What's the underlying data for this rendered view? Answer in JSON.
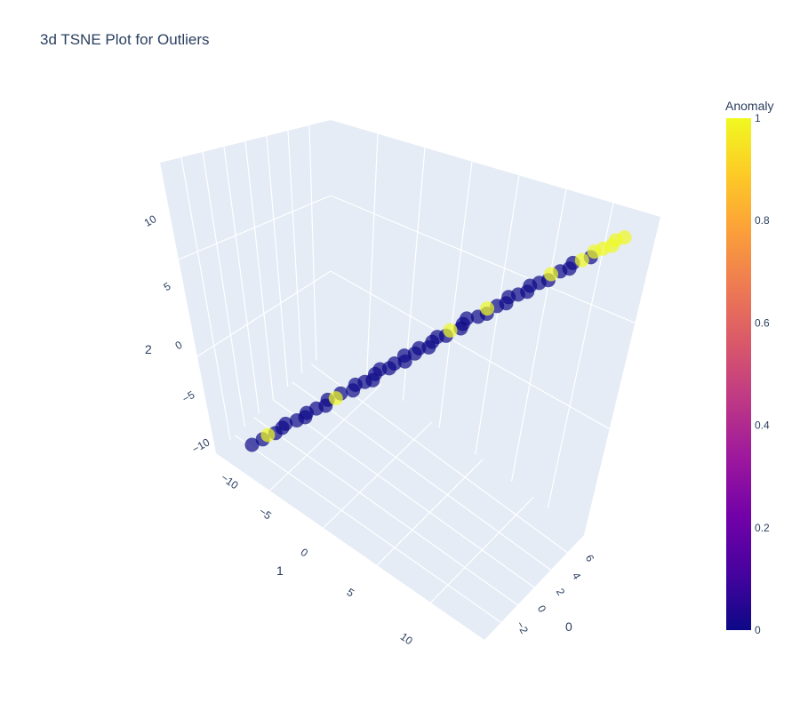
{
  "chart_data": {
    "type": "scatter",
    "title": "3d TSNE Plot for Outliers",
    "axes": {
      "x": {
        "title": "1",
        "ticks": [
          "−10",
          "−5",
          "0",
          "5",
          "10"
        ],
        "range": [
          -12,
          12
        ]
      },
      "y": {
        "title": "0",
        "ticks": [
          "6",
          "4",
          "2",
          "0",
          "−2"
        ],
        "range": [
          -3,
          7
        ]
      },
      "z": {
        "title": "2",
        "ticks": [
          "−10",
          "−5",
          "0",
          "5",
          "10"
        ],
        "range": [
          -12,
          13
        ]
      }
    },
    "colorbar": {
      "title": "Anomaly",
      "ticks": [
        "0",
        "0.2",
        "0.4",
        "0.6",
        "0.8",
        "1"
      ],
      "range": [
        0,
        1
      ],
      "colorscale": [
        "#0d0887",
        "#46039f",
        "#7201a8",
        "#9c179e",
        "#bd3786",
        "#d8576b",
        "#ed7953",
        "#fb9f3a",
        "#fdca26",
        "#f0f921"
      ]
    },
    "marker_opacity": 0.7,
    "series": [
      {
        "values_description_free": true,
        "points": [
          {
            "x": -10.8,
            "y": 1.0,
            "z": -10.0,
            "anomaly": 0
          },
          {
            "x": -10.2,
            "y": 1.2,
            "z": -9.5,
            "anomaly": 0
          },
          {
            "x": -9.8,
            "y": 0.8,
            "z": -9.8,
            "anomaly": 1
          },
          {
            "x": -9.5,
            "y": 1.5,
            "z": -9.0,
            "anomaly": 0
          },
          {
            "x": -9.0,
            "y": 1.1,
            "z": -9.2,
            "anomaly": 0
          },
          {
            "x": -8.7,
            "y": 0.6,
            "z": -8.8,
            "anomaly": 0
          },
          {
            "x": -8.2,
            "y": 1.4,
            "z": -8.5,
            "anomaly": 0
          },
          {
            "x": -7.8,
            "y": 1.9,
            "z": -8.0,
            "anomaly": 0
          },
          {
            "x": -7.5,
            "y": 0.9,
            "z": -8.3,
            "anomaly": 0
          },
          {
            "x": -7.0,
            "y": 1.3,
            "z": -7.6,
            "anomaly": 0
          },
          {
            "x": -6.6,
            "y": 2.0,
            "z": -7.2,
            "anomaly": 0
          },
          {
            "x": -6.2,
            "y": 0.7,
            "z": -7.4,
            "anomaly": 0
          },
          {
            "x": -5.9,
            "y": 1.6,
            "z": -6.8,
            "anomaly": 1
          },
          {
            "x": -5.5,
            "y": 1.1,
            "z": -6.5,
            "anomaly": 0
          },
          {
            "x": -5.0,
            "y": 2.2,
            "z": -6.0,
            "anomaly": 0
          },
          {
            "x": -4.6,
            "y": 1.0,
            "z": -6.2,
            "anomaly": 0
          },
          {
            "x": -4.2,
            "y": 1.8,
            "z": -5.4,
            "anomaly": 0
          },
          {
            "x": -3.9,
            "y": 2.6,
            "z": -5.0,
            "anomaly": 0
          },
          {
            "x": -3.5,
            "y": 1.4,
            "z": -4.6,
            "anomaly": 0
          },
          {
            "x": -3.1,
            "y": 0.9,
            "z": -4.2,
            "anomaly": 0
          },
          {
            "x": -2.8,
            "y": 2.1,
            "z": -3.8,
            "anomaly": 0
          },
          {
            "x": -2.4,
            "y": 1.7,
            "z": -3.2,
            "anomaly": 0
          },
          {
            "x": -2.0,
            "y": 2.8,
            "z": -2.8,
            "anomaly": 0
          },
          {
            "x": -1.7,
            "y": 1.2,
            "z": -2.5,
            "anomaly": 0
          },
          {
            "x": -1.3,
            "y": 2.3,
            "z": -2.0,
            "anomaly": 0
          },
          {
            "x": -0.9,
            "y": 1.6,
            "z": -1.5,
            "anomaly": 0
          },
          {
            "x": -0.6,
            "y": 2.9,
            "z": -1.0,
            "anomaly": 0
          },
          {
            "x": -0.2,
            "y": 2.0,
            "z": -0.6,
            "anomaly": 0
          },
          {
            "x": 0.2,
            "y": 1.5,
            "z": -0.2,
            "anomaly": 0
          },
          {
            "x": 0.5,
            "y": 2.6,
            "z": 0.3,
            "anomaly": 0
          },
          {
            "x": 0.9,
            "y": 1.9,
            "z": 0.8,
            "anomaly": 1
          },
          {
            "x": 1.3,
            "y": 3.0,
            "z": 1.2,
            "anomaly": 0
          },
          {
            "x": 1.6,
            "y": 2.2,
            "z": 1.6,
            "anomaly": 0
          },
          {
            "x": 2.0,
            "y": 1.4,
            "z": 2.0,
            "anomaly": 0
          },
          {
            "x": 2.4,
            "y": 2.7,
            "z": 2.5,
            "anomaly": 0
          },
          {
            "x": 2.8,
            "y": 3.3,
            "z": 3.0,
            "anomaly": 0
          },
          {
            "x": 3.1,
            "y": 2.0,
            "z": 3.3,
            "anomaly": 1
          },
          {
            "x": 3.5,
            "y": 2.9,
            "z": 3.8,
            "anomaly": 0
          },
          {
            "x": 3.9,
            "y": 3.6,
            "z": 4.2,
            "anomaly": 0
          },
          {
            "x": 4.3,
            "y": 2.4,
            "z": 4.6,
            "anomaly": 0
          },
          {
            "x": 4.7,
            "y": 3.2,
            "z": 5.1,
            "anomaly": 0
          },
          {
            "x": 5.1,
            "y": 3.9,
            "z": 5.6,
            "anomaly": 0
          },
          {
            "x": 5.5,
            "y": 2.8,
            "z": 6.0,
            "anomaly": 0
          },
          {
            "x": 5.9,
            "y": 3.5,
            "z": 6.5,
            "anomaly": 0
          },
          {
            "x": 6.3,
            "y": 4.2,
            "z": 7.0,
            "anomaly": 0
          },
          {
            "x": 6.7,
            "y": 3.1,
            "z": 7.4,
            "anomaly": 1
          },
          {
            "x": 7.1,
            "y": 3.8,
            "z": 7.9,
            "anomaly": 0
          },
          {
            "x": 7.5,
            "y": 4.5,
            "z": 8.4,
            "anomaly": 0
          },
          {
            "x": 7.9,
            "y": 3.6,
            "z": 8.8,
            "anomaly": 0
          },
          {
            "x": 8.3,
            "y": 4.3,
            "z": 9.3,
            "anomaly": 1
          },
          {
            "x": 8.7,
            "y": 4.9,
            "z": 9.7,
            "anomaly": 0
          },
          {
            "x": 9.1,
            "y": 4.0,
            "z": 10.1,
            "anomaly": 1
          },
          {
            "x": 9.5,
            "y": 4.6,
            "z": 10.6,
            "anomaly": 1
          },
          {
            "x": 9.9,
            "y": 5.2,
            "z": 11.0,
            "anomaly": 1
          },
          {
            "x": 10.3,
            "y": 4.4,
            "z": 11.4,
            "anomaly": 1
          },
          {
            "x": 10.7,
            "y": 5.0,
            "z": 11.8,
            "anomaly": 1
          }
        ]
      }
    ]
  }
}
